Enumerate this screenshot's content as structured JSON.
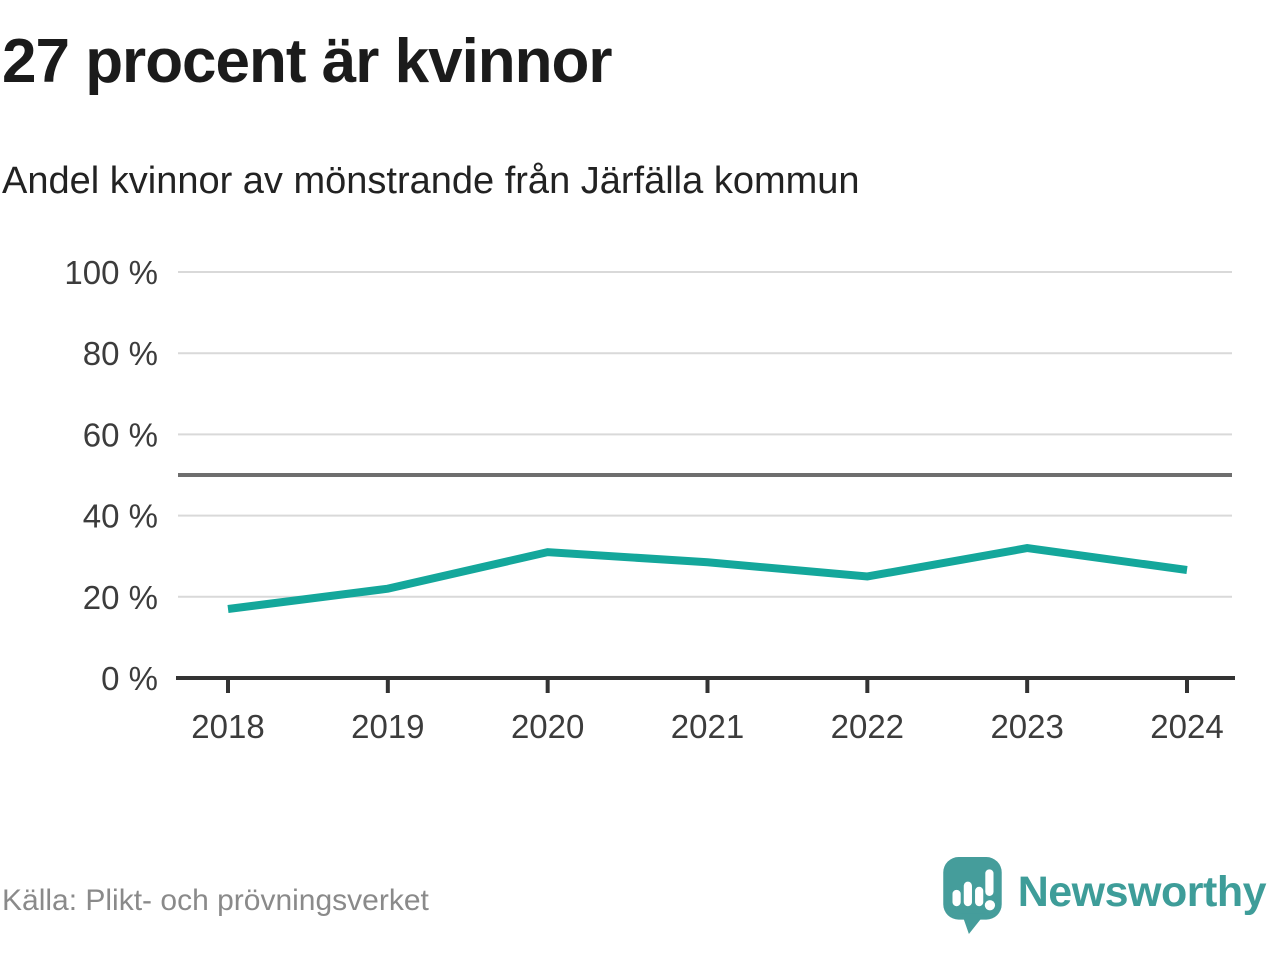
{
  "header": {
    "title": "27 procent är kvinnor",
    "subtitle": "Andel kvinnor av mönstrande från Järfälla kommun"
  },
  "footer": {
    "source": "Källa: Plikt- och prövningsverket",
    "logo_text": "Newsworthy"
  },
  "colors": {
    "accent": "#14a79b",
    "logo": "#459d9b",
    "grid": "#d9d9d9",
    "axis": "#333333",
    "reference": "#6e6e6e",
    "tick_label": "#3c3c3c",
    "muted_text": "#8a8a8a"
  },
  "chart_data": {
    "type": "line",
    "title": "27 procent är kvinnor",
    "subtitle": "Andel kvinnor av mönstrande från Järfälla kommun",
    "categories": [
      "2018",
      "2019",
      "2020",
      "2021",
      "2022",
      "2023",
      "2024"
    ],
    "series": [
      {
        "name": "Andel kvinnor av mönstrande, Järfälla kommun",
        "values": [
          17,
          22,
          31,
          28.5,
          25,
          32,
          26.6
        ]
      }
    ],
    "xlabel": "",
    "ylabel": "",
    "ylim": [
      0,
      100
    ],
    "ytick_values": [
      0,
      20,
      40,
      60,
      80,
      100
    ],
    "ytick_labels": [
      "0 %",
      "20 %",
      "40 %",
      "60 %",
      "80 %",
      "100 %"
    ],
    "reference_line": 50,
    "grid": true,
    "legend_position": "none",
    "source": "Källa: Plikt- och prövningsverket"
  }
}
